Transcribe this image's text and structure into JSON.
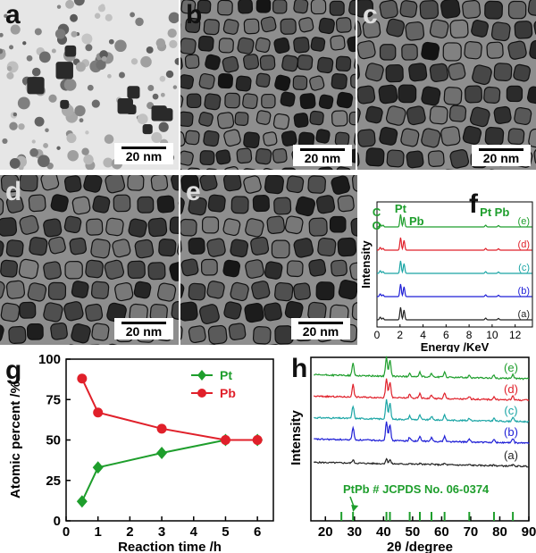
{
  "tem_panels": [
    {
      "id": "a",
      "label": "a",
      "scale_bar": "20 nm",
      "density": "sparse"
    },
    {
      "id": "b",
      "label": "b",
      "scale_bar": "20 nm",
      "density": "dense"
    },
    {
      "id": "c",
      "label": "c",
      "scale_bar": "20 nm",
      "density": "dense"
    },
    {
      "id": "d",
      "label": "d",
      "scale_bar": "20 nm",
      "density": "dense"
    },
    {
      "id": "e",
      "label": "e",
      "scale_bar": "20 nm",
      "density": "dense"
    }
  ],
  "chart_data": [
    {
      "panel": "f",
      "type": "line",
      "xlabel": "Energy /KeV",
      "ylabel": "Intensity",
      "xlim": [
        0,
        13.5
      ],
      "xticks": [
        0,
        2,
        4,
        6,
        8,
        10,
        12
      ],
      "series": [
        {
          "name": "(a)",
          "color": "#222222"
        },
        {
          "name": "(b)",
          "color": "#1f1fd6"
        },
        {
          "name": "(c)",
          "color": "#1aa5a5"
        },
        {
          "name": "(d)",
          "color": "#e0202a"
        },
        {
          "name": "(e)",
          "color": "#1e9e2c"
        }
      ],
      "peaks_kev": [
        0.28,
        0.52,
        2.05,
        2.35,
        9.44,
        10.55
      ],
      "annotations": [
        {
          "text": "C",
          "x": 0.28
        },
        {
          "text": "O",
          "x": 0.52
        },
        {
          "text": "Pt",
          "x": 2.05
        },
        {
          "text": "Pb",
          "x": 2.35
        },
        {
          "text": "Pt",
          "x": 9.44
        },
        {
          "text": "Pb",
          "x": 10.55
        }
      ]
    },
    {
      "panel": "g",
      "type": "line",
      "xlabel": "Reaction time /h",
      "ylabel": "Atomic percent /%",
      "xlim": [
        0,
        6.5
      ],
      "ylim": [
        0,
        100
      ],
      "xticks": [
        0,
        1,
        2,
        3,
        4,
        5,
        6
      ],
      "yticks": [
        0,
        25,
        50,
        75,
        100
      ],
      "x": [
        0.5,
        1,
        3,
        5,
        6
      ],
      "series": [
        {
          "name": "Pt",
          "color": "#1e9e2c",
          "marker": "diamond",
          "values": [
            12,
            33,
            42,
            50,
            50
          ]
        },
        {
          "name": "Pb",
          "color": "#e0202a",
          "marker": "circle",
          "values": [
            88,
            67,
            57,
            50,
            50
          ]
        }
      ],
      "legend": "top-right"
    },
    {
      "panel": "h",
      "type": "line",
      "xlabel": "2θ /degree",
      "ylabel": "Intensity",
      "xlim": [
        15,
        90
      ],
      "xticks": [
        20,
        30,
        40,
        50,
        60,
        70,
        80,
        90
      ],
      "series": [
        {
          "name": "(a)",
          "color": "#222222"
        },
        {
          "name": "(b)",
          "color": "#1f1fd6"
        },
        {
          "name": "(c)",
          "color": "#1aa5a5"
        },
        {
          "name": "(d)",
          "color": "#e0202a"
        },
        {
          "name": "(e)",
          "color": "#1e9e2c"
        }
      ],
      "reference": {
        "label": "PtPb # JCPDS No. 06-0374",
        "color": "#1e9e2c",
        "lines_2theta": [
          25.5,
          29.5,
          41.0,
          42.2,
          49.0,
          52.5,
          56.5,
          61.0,
          69.5,
          78.0,
          84.5
        ]
      }
    }
  ],
  "panel_labels": {
    "f": "f",
    "g": "g",
    "h": "h"
  }
}
